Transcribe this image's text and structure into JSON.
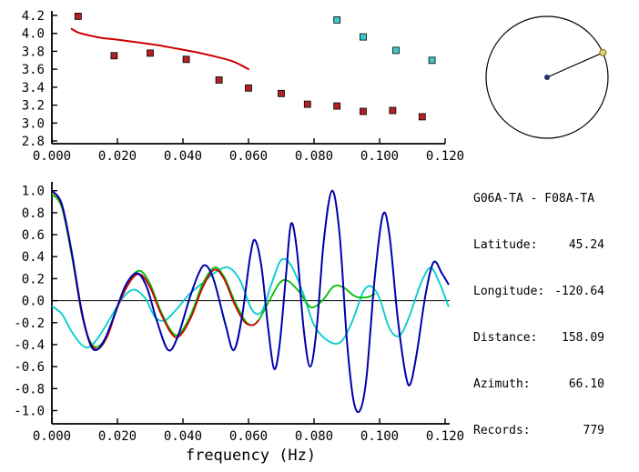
{
  "station_info": {
    "pair": "G06A-TA - F08A-TA",
    "rows": [
      {
        "label": "Latitude:",
        "value": "45.24"
      },
      {
        "label": "Longitude:",
        "value": "-120.64"
      },
      {
        "label": "Distance:",
        "value": "158.09"
      },
      {
        "label": "Azimuth:",
        "value": "66.10"
      },
      {
        "label": "Records:",
        "value": "779"
      }
    ]
  },
  "azimuth_diagram": {
    "azimuth_deg": 66.1,
    "circle_color": "#000000",
    "line_color": "#000000",
    "center_dot_color": "#223366",
    "end_dot_color": "#d8d87a",
    "end_dot_stroke": "#886600"
  },
  "chart_data": [
    {
      "id": "dispersion",
      "type": "scatter",
      "title": "",
      "xlabel": "",
      "ylabel": "",
      "xlim": [
        0,
        0.12
      ],
      "ylim": [
        2.77,
        4.25
      ],
      "zero_line": false,
      "xticks": {
        "values": [
          0,
          0.02,
          0.04,
          0.06,
          0.08,
          0.1,
          0.12
        ],
        "labels": [
          "0.000",
          "0.020",
          "0.040",
          "0.060",
          "0.080",
          "0.100",
          "0.120"
        ]
      },
      "yticks": {
        "values": [
          2.8,
          3.0,
          3.2,
          3.4,
          3.6,
          3.8,
          4.0,
          4.2
        ],
        "labels": [
          "2.8",
          "3.0",
          "3.2",
          "3.4",
          "3.6",
          "3.8",
          "4.0",
          "4.2"
        ]
      },
      "series": [
        {
          "name": "phase-velocity-picks-red",
          "type": "scatter",
          "marker": "square",
          "color": "#b22222",
          "size": 7,
          "points": [
            [
              0.008,
              4.19
            ],
            [
              0.019,
              3.75
            ],
            [
              0.03,
              3.78
            ],
            [
              0.041,
              3.71
            ],
            [
              0.051,
              3.48
            ],
            [
              0.06,
              3.39
            ],
            [
              0.07,
              3.33
            ],
            [
              0.078,
              3.21
            ],
            [
              0.087,
              3.19
            ],
            [
              0.095,
              3.13
            ],
            [
              0.104,
              3.14
            ],
            [
              0.113,
              3.07
            ]
          ]
        },
        {
          "name": "phase-velocity-picks-cyan",
          "type": "scatter",
          "marker": "square",
          "color": "#3fc8c8",
          "size": 7,
          "points": [
            [
              0.087,
              4.15
            ],
            [
              0.095,
              3.96
            ],
            [
              0.105,
              3.81
            ],
            [
              0.116,
              3.7
            ]
          ]
        },
        {
          "name": "reference-dispersion-curve",
          "type": "line",
          "color": "#cc0000",
          "width": 2,
          "points": [
            [
              0.006,
              4.05
            ],
            [
              0.008,
              4.01
            ],
            [
              0.011,
              3.98
            ],
            [
              0.015,
              3.95
            ],
            [
              0.02,
              3.93
            ],
            [
              0.026,
              3.9
            ],
            [
              0.032,
              3.87
            ],
            [
              0.038,
              3.83
            ],
            [
              0.044,
              3.79
            ],
            [
              0.05,
              3.74
            ],
            [
              0.055,
              3.69
            ],
            [
              0.058,
              3.64
            ],
            [
              0.06,
              3.6
            ]
          ]
        }
      ]
    },
    {
      "id": "waveform",
      "type": "line",
      "title": "",
      "xlabel": "frequency (Hz)",
      "ylabel": "",
      "xlim": [
        0,
        0.1214
      ],
      "ylim": [
        -1.12,
        1.08
      ],
      "zero_line": true,
      "xticks": {
        "values": [
          0,
          0.02,
          0.04,
          0.06,
          0.08,
          0.1,
          0.12
        ],
        "labels": [
          "0.000",
          "0.020",
          "0.040",
          "0.060",
          "0.080",
          "0.100",
          "0.120"
        ]
      },
      "yticks": {
        "values": [
          1.0,
          0.8,
          0.6,
          0.4,
          0.2,
          0.0,
          -0.2,
          -0.4,
          -0.6,
          -0.8,
          -1.0
        ],
        "labels": [
          "1.0",
          "0.8",
          "0.6",
          "0.4",
          "0.2",
          "0.0",
          "-0.2",
          "-0.4",
          "-0.6",
          "-0.8",
          "-1.0"
        ]
      },
      "series": [
        {
          "name": "trace-cyan",
          "type": "line",
          "color": "#00cccc",
          "width": 1.8,
          "points": [
            [
              0.0,
              -0.05
            ],
            [
              0.003,
              -0.12
            ],
            [
              0.006,
              -0.28
            ],
            [
              0.009,
              -0.4
            ],
            [
              0.0115,
              -0.42
            ],
            [
              0.0145,
              -0.32
            ],
            [
              0.018,
              -0.15
            ],
            [
              0.0215,
              0.02
            ],
            [
              0.025,
              0.1
            ],
            [
              0.0285,
              0.02
            ],
            [
              0.0315,
              -0.15
            ],
            [
              0.0345,
              -0.18
            ],
            [
              0.038,
              -0.08
            ],
            [
              0.042,
              0.06
            ],
            [
              0.046,
              0.16
            ],
            [
              0.05,
              0.26
            ],
            [
              0.054,
              0.3
            ],
            [
              0.0575,
              0.18
            ],
            [
              0.061,
              -0.08
            ],
            [
              0.064,
              -0.1
            ],
            [
              0.067,
              0.15
            ],
            [
              0.07,
              0.37
            ],
            [
              0.073,
              0.32
            ],
            [
              0.0765,
              0.08
            ],
            [
              0.08,
              -0.22
            ],
            [
              0.084,
              -0.36
            ],
            [
              0.088,
              -0.38
            ],
            [
              0.0915,
              -0.2
            ],
            [
              0.095,
              0.08
            ],
            [
              0.0975,
              0.13
            ],
            [
              0.1,
              0.02
            ],
            [
              0.103,
              -0.25
            ],
            [
              0.106,
              -0.32
            ],
            [
              0.109,
              -0.15
            ],
            [
              0.1125,
              0.15
            ],
            [
              0.1155,
              0.3
            ],
            [
              0.118,
              0.18
            ],
            [
              0.121,
              -0.05
            ]
          ]
        },
        {
          "name": "trace-green",
          "type": "line",
          "color": "#00bb00",
          "width": 1.8,
          "points": [
            [
              0.0,
              0.97
            ],
            [
              0.003,
              0.85
            ],
            [
              0.006,
              0.42
            ],
            [
              0.009,
              -0.1
            ],
            [
              0.0115,
              -0.36
            ],
            [
              0.014,
              -0.42
            ],
            [
              0.017,
              -0.3
            ],
            [
              0.02,
              -0.05
            ],
            [
              0.024,
              0.2
            ],
            [
              0.027,
              0.27
            ],
            [
              0.03,
              0.15
            ],
            [
              0.033,
              -0.08
            ],
            [
              0.0365,
              -0.28
            ],
            [
              0.039,
              -0.3
            ],
            [
              0.0425,
              -0.12
            ],
            [
              0.046,
              0.15
            ],
            [
              0.0495,
              0.3
            ],
            [
              0.0525,
              0.22
            ],
            [
              0.056,
              -0.02
            ],
            [
              0.0595,
              -0.2
            ],
            [
              0.0625,
              -0.2
            ],
            [
              0.066,
              -0.02
            ],
            [
              0.0695,
              0.16
            ],
            [
              0.072,
              0.18
            ],
            [
              0.0755,
              0.08
            ],
            [
              0.079,
              -0.06
            ],
            [
              0.0825,
              0.0
            ],
            [
              0.086,
              0.13
            ],
            [
              0.089,
              0.12
            ],
            [
              0.0925,
              0.04
            ],
            [
              0.096,
              0.03
            ],
            [
              0.0985,
              0.06
            ]
          ]
        },
        {
          "name": "trace-red",
          "type": "line",
          "color": "#cc0000",
          "width": 1.8,
          "points": [
            [
              0.0,
              1.0
            ],
            [
              0.003,
              0.87
            ],
            [
              0.006,
              0.44
            ],
            [
              0.009,
              -0.1
            ],
            [
              0.0115,
              -0.37
            ],
            [
              0.014,
              -0.44
            ],
            [
              0.017,
              -0.32
            ],
            [
              0.02,
              -0.06
            ],
            [
              0.024,
              0.18
            ],
            [
              0.027,
              0.24
            ],
            [
              0.03,
              0.12
            ],
            [
              0.033,
              -0.1
            ],
            [
              0.0365,
              -0.3
            ],
            [
              0.039,
              -0.32
            ],
            [
              0.0425,
              -0.15
            ],
            [
              0.046,
              0.12
            ],
            [
              0.0495,
              0.28
            ],
            [
              0.0525,
              0.2
            ],
            [
              0.056,
              -0.05
            ],
            [
              0.059,
              -0.2
            ],
            [
              0.0615,
              -0.22
            ],
            [
              0.063,
              -0.18
            ]
          ]
        },
        {
          "name": "trace-navy",
          "type": "line",
          "color": "#0000aa",
          "width": 2,
          "points": [
            [
              0.0,
              1.0
            ],
            [
              0.003,
              0.88
            ],
            [
              0.006,
              0.45
            ],
            [
              0.009,
              -0.08
            ],
            [
              0.0115,
              -0.38
            ],
            [
              0.0135,
              -0.45
            ],
            [
              0.016,
              -0.36
            ],
            [
              0.019,
              -0.14
            ],
            [
              0.0225,
              0.14
            ],
            [
              0.026,
              0.25
            ],
            [
              0.029,
              0.12
            ],
            [
              0.032,
              -0.18
            ],
            [
              0.0355,
              -0.45
            ],
            [
              0.0385,
              -0.32
            ],
            [
              0.042,
              0.02
            ],
            [
              0.045,
              0.26
            ],
            [
              0.047,
              0.32
            ],
            [
              0.0495,
              0.18
            ],
            [
              0.053,
              -0.22
            ],
            [
              0.0555,
              -0.45
            ],
            [
              0.058,
              -0.15
            ],
            [
              0.0605,
              0.4
            ],
            [
              0.062,
              0.55
            ],
            [
              0.064,
              0.3
            ],
            [
              0.066,
              -0.25
            ],
            [
              0.0678,
              -0.62
            ],
            [
              0.0695,
              -0.4
            ],
            [
              0.0715,
              0.25
            ],
            [
              0.073,
              0.7
            ],
            [
              0.0748,
              0.45
            ],
            [
              0.0768,
              -0.25
            ],
            [
              0.0788,
              -0.6
            ],
            [
              0.0808,
              -0.25
            ],
            [
              0.083,
              0.55
            ],
            [
              0.0855,
              1.0
            ],
            [
              0.0878,
              0.6
            ],
            [
              0.09,
              -0.35
            ],
            [
              0.092,
              -0.9
            ],
            [
              0.094,
              -1.0
            ],
            [
              0.096,
              -0.7
            ],
            [
              0.0985,
              0.2
            ],
            [
              0.101,
              0.78
            ],
            [
              0.103,
              0.6
            ],
            [
              0.1055,
              -0.15
            ],
            [
              0.108,
              -0.68
            ],
            [
              0.1095,
              -0.75
            ],
            [
              0.1115,
              -0.45
            ],
            [
              0.114,
              0.05
            ],
            [
              0.1165,
              0.35
            ],
            [
              0.119,
              0.25
            ],
            [
              0.121,
              0.15
            ]
          ]
        }
      ]
    }
  ]
}
